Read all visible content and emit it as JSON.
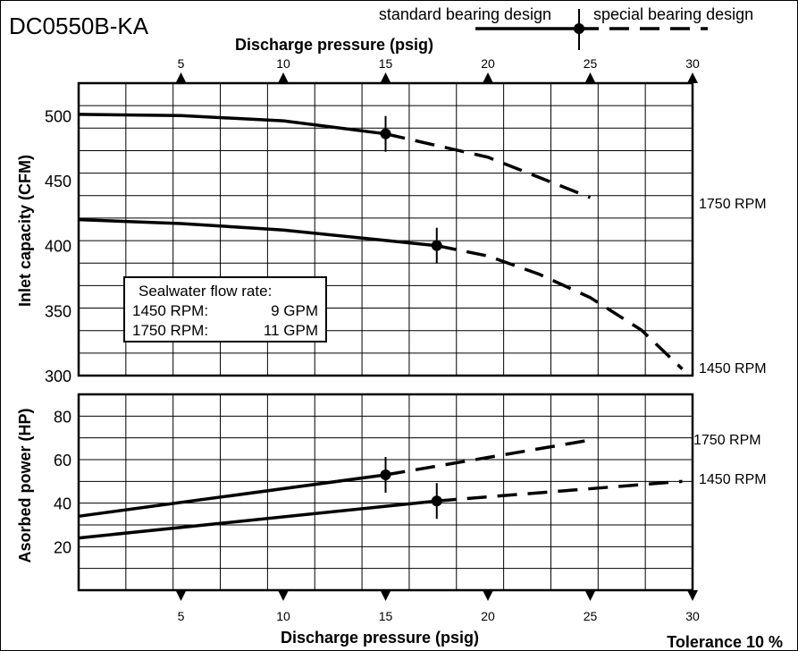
{
  "title": "DC0550B-KA",
  "legend": {
    "standard_label": "standard bearing design",
    "special_label": "special bearing design"
  },
  "note": {
    "heading": "Sealwater flow rate:",
    "rows": [
      {
        "speed": "1450 RPM:",
        "flow": "9 GPM"
      },
      {
        "speed": "1750 RPM:",
        "flow": "11 GPM"
      }
    ]
  },
  "footer": "Tolerance 10 %",
  "colors": {
    "line": "#000000",
    "background": "#ffffff"
  },
  "chart_data": [
    {
      "type": "line",
      "xlabel": "Discharge pressure (psig)",
      "ylabel": "Inlet capacity (CFM)",
      "xlim": [
        0,
        30
      ],
      "ylim": [
        300,
        525
      ],
      "xticks": [
        5,
        10,
        15,
        20,
        25,
        30
      ],
      "yticks": [
        300,
        350,
        400,
        450,
        500
      ],
      "grid": true,
      "series": [
        {
          "name": "1750 RPM",
          "solid": [
            [
              0,
              501
            ],
            [
              5,
              500
            ],
            [
              10,
              496
            ],
            [
              15,
              486
            ]
          ],
          "dashed": [
            [
              15,
              486
            ],
            [
              20,
              468
            ],
            [
              25,
              437
            ]
          ],
          "marker": [
            15,
            486
          ]
        },
        {
          "name": "1450 RPM",
          "solid": [
            [
              0,
              420
            ],
            [
              5,
              417
            ],
            [
              10,
              412
            ],
            [
              15,
              404
            ],
            [
              17.5,
              400
            ]
          ],
          "dashed": [
            [
              17.5,
              400
            ],
            [
              20,
              392
            ],
            [
              22.5,
              378
            ],
            [
              25,
              360
            ],
            [
              27.5,
              335
            ],
            [
              29.5,
              305
            ]
          ],
          "marker": [
            17.5,
            400
          ]
        }
      ]
    },
    {
      "type": "line",
      "xlabel": "Discharge pressure (psig)",
      "ylabel": "Asorbed power (HP)",
      "xlim": [
        0,
        30
      ],
      "ylim": [
        0,
        90
      ],
      "xticks": [
        5,
        10,
        15,
        20,
        25,
        30
      ],
      "yticks": [
        20,
        40,
        60,
        80
      ],
      "grid": true,
      "series": [
        {
          "name": "1750 RPM",
          "solid": [
            [
              0,
              34
            ],
            [
              15,
              53
            ]
          ],
          "dashed": [
            [
              15,
              53
            ],
            [
              25,
              69
            ]
          ],
          "marker": [
            15,
            53
          ]
        },
        {
          "name": "1450 RPM",
          "solid": [
            [
              0,
              24
            ],
            [
              17.5,
              41
            ]
          ],
          "dashed": [
            [
              17.5,
              41
            ],
            [
              29.5,
              50
            ]
          ],
          "marker": [
            17.5,
            41
          ]
        }
      ]
    }
  ]
}
